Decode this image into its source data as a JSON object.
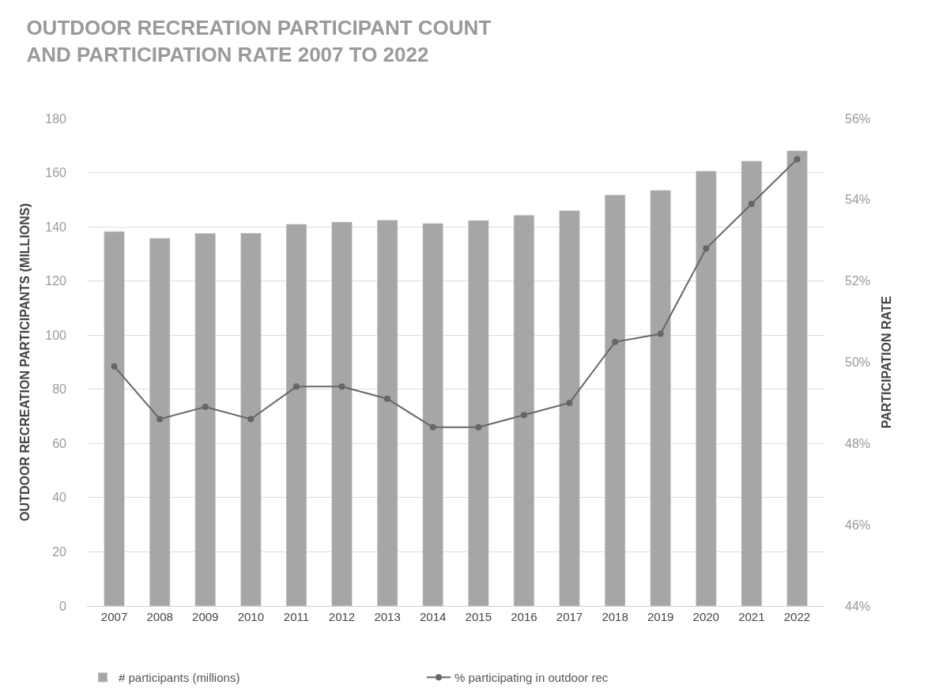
{
  "chart_data": {
    "type": "bar",
    "title": "OUTDOOR RECREATION PARTICIPANT COUNT\nAND PARTICIPATION RATE 2007 TO 2022",
    "ylabel": "OUTDOOR RECREATION PARTICIPANTS (MILLIONS)",
    "y2label": "PARTICIPATION RATE",
    "categories": [
      "2007",
      "2008",
      "2009",
      "2010",
      "2011",
      "2012",
      "2013",
      "2014",
      "2015",
      "2016",
      "2017",
      "2018",
      "2019",
      "2020",
      "2021",
      "2022"
    ],
    "series": [
      {
        "name": "# participants (millions)",
        "color": "#a6a6a6",
        "values": [
          138.3,
          135.8,
          137.6,
          137.7,
          141.0,
          141.8,
          142.5,
          141.3,
          142.4,
          144.3,
          146.0,
          151.8,
          153.5,
          160.6,
          164.3,
          168.1
        ]
      },
      {
        "name": "% participating in outdoor rec",
        "type": "line",
        "axis": "y2",
        "color": "#666666",
        "marker": "circle",
        "values": [
          49.9,
          48.6,
          48.9,
          48.6,
          49.4,
          49.4,
          49.1,
          48.4,
          48.4,
          48.7,
          49.0,
          50.5,
          50.7,
          52.8,
          53.9,
          55.0
        ]
      }
    ],
    "ylim": [
      0,
      180
    ],
    "yticks": [
      0,
      20,
      40,
      60,
      80,
      100,
      120,
      140,
      160,
      180
    ],
    "y2lim": [
      44,
      56
    ],
    "y2ticks": [
      {
        "value": 44,
        "label": "44%"
      },
      {
        "value": 46,
        "label": "46%"
      },
      {
        "value": 48,
        "label": "48%"
      },
      {
        "value": 50,
        "label": "50%"
      },
      {
        "value": 52,
        "label": "52%"
      },
      {
        "value": 54,
        "label": "54%"
      },
      {
        "value": 56,
        "label": "56%"
      }
    ],
    "grid": "y",
    "legend": "bottom"
  }
}
